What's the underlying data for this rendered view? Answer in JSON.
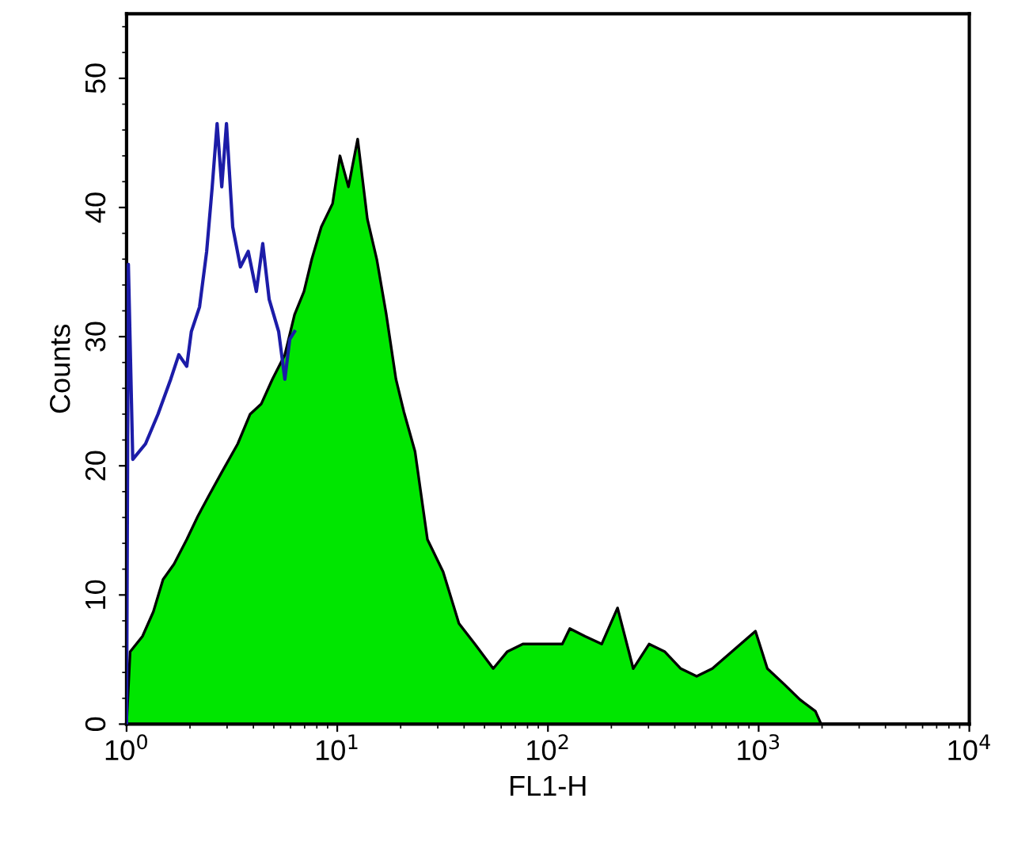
{
  "chart_data": {
    "type": "area",
    "xlabel": "FL1-H",
    "ylabel": "Counts",
    "log": "x",
    "grid": false,
    "legend": false,
    "xlim": [
      1,
      10000
    ],
    "xticks": [
      {
        "value": 1,
        "label": "10$^{0}$"
      },
      {
        "value": 10,
        "label": "10$^{1}$"
      },
      {
        "value": 100,
        "label": "10$^{2}$"
      },
      {
        "value": 1000,
        "label": "10$^{3}$"
      },
      {
        "value": 10000,
        "label": "10$^{4}$"
      }
    ],
    "ylim": [
      0,
      55
    ],
    "yticks": [
      0,
      10,
      20,
      30,
      40,
      50
    ],
    "series": [
      {
        "color": "#00e600",
        "x": [
          1,
          1.04,
          1.19,
          1.34,
          1.49,
          1.68,
          1.93,
          2.18,
          2.46,
          2.83,
          3.37,
          3.86,
          4.36,
          4.92,
          5.64,
          6.27,
          6.95,
          7.57,
          8.4,
          9.5,
          10.3,
          11.3,
          12.5,
          13.9,
          15.4,
          17.1,
          19.0,
          20.7,
          23.4,
          26.8,
          31.8,
          37.8,
          45,
          55,
          64,
          76,
          98,
          117,
          127,
          150,
          180,
          214,
          254,
          302,
          359,
          427,
          508,
          603,
          966,
          1100,
          1320,
          1570,
          1860,
          1980,
          10000
        ],
        "values": [
          0,
          5.6,
          6.8,
          8.7,
          11.2,
          12.4,
          14.3,
          16.1,
          17.7,
          19.5,
          21.7,
          24,
          24.8,
          26.7,
          28.6,
          31.7,
          33.5,
          36,
          38.5,
          40.3,
          44,
          41.6,
          45.3,
          39.1,
          36,
          31.7,
          26.7,
          24.2,
          21.1,
          14.3,
          11.8,
          7.8,
          6.2,
          4.3,
          5.6,
          6.2,
          6.2,
          6.2,
          7.4,
          6.8,
          6.2,
          9.0,
          4.3,
          6.2,
          5.6,
          4.3,
          3.7,
          4.3,
          7.2,
          4.3,
          3.1,
          1.9,
          1.0,
          0,
          0
        ]
      },
      {
        "type": "line",
        "color": "#1c1ca8",
        "x": [
          1.0,
          1.02,
          1.07,
          1.23,
          1.41,
          1.62,
          1.77,
          1.93,
          2.03,
          2.22,
          2.4,
          2.55,
          2.69,
          2.83,
          2.98,
          3.19,
          3.47,
          3.78,
          4.13,
          4.43,
          4.75,
          5.27,
          5.64,
          5.95,
          6.27
        ],
        "values": [
          0,
          35.6,
          20.5,
          21.7,
          24,
          26.7,
          28.6,
          27.7,
          30.4,
          32.3,
          36.6,
          41.6,
          46.5,
          41.6,
          46.5,
          38.5,
          35.4,
          36.6,
          33.5,
          37.2,
          32.9,
          30.4,
          26.7,
          29.8,
          30.4
        ]
      }
    ]
  }
}
